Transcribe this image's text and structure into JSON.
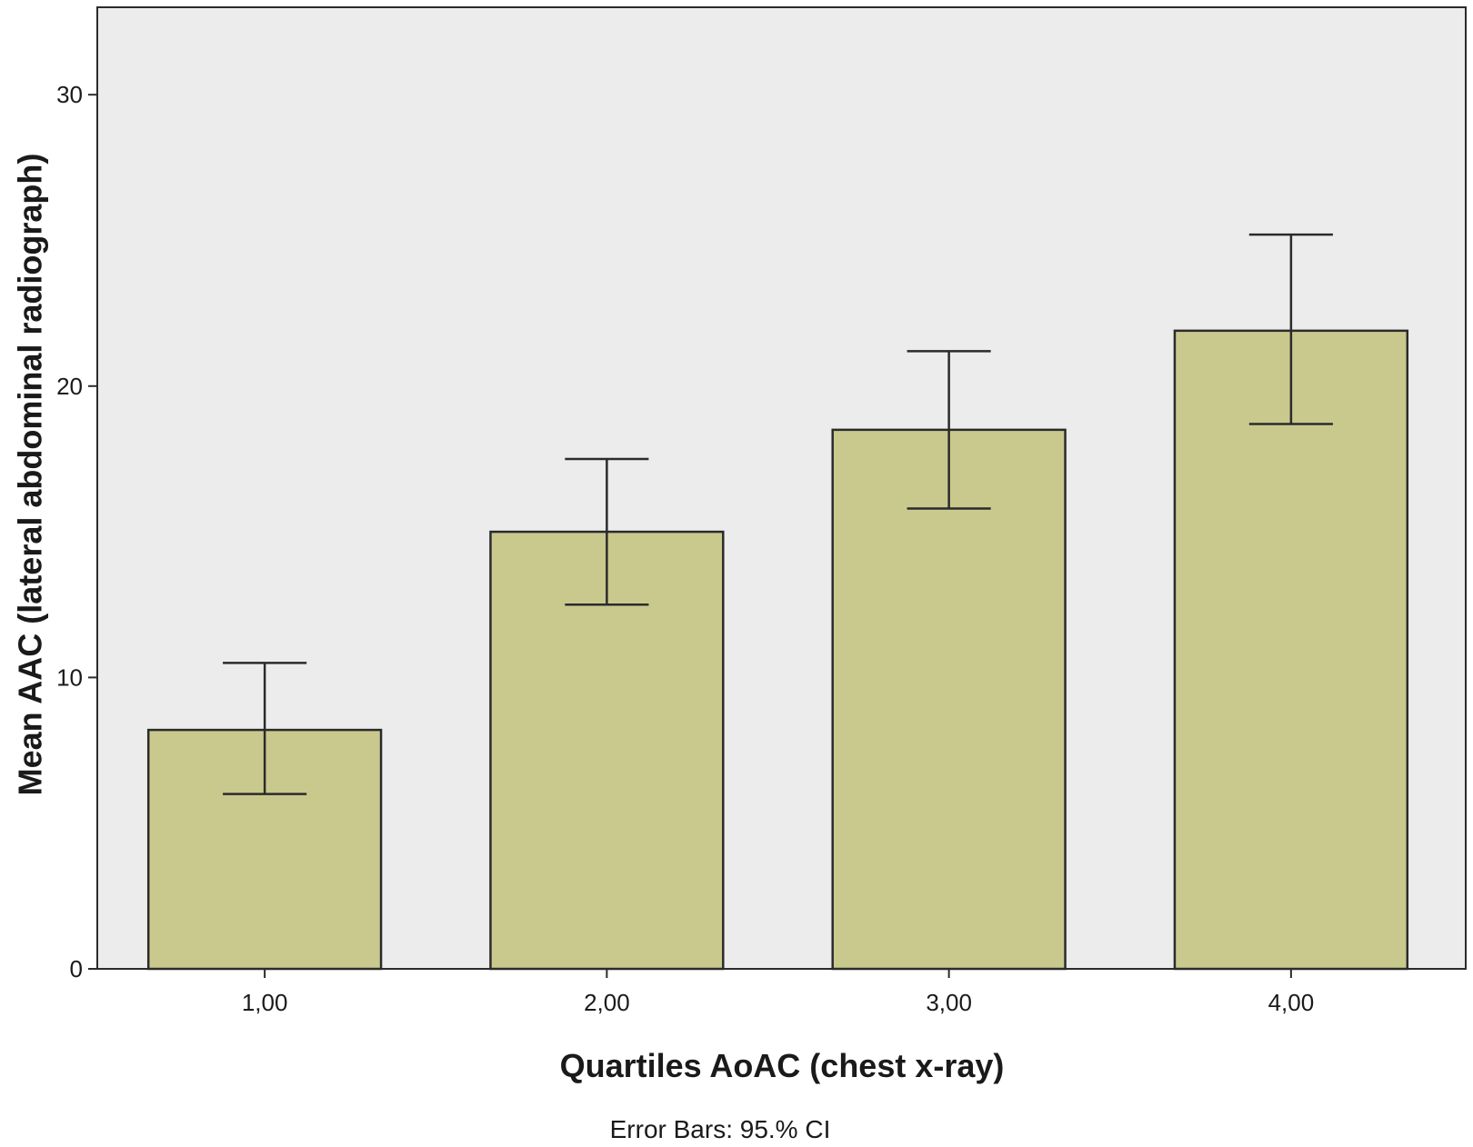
{
  "chart_data": {
    "type": "bar",
    "categories": [
      "1,00",
      "2,00",
      "3,00",
      "4,00"
    ],
    "values": [
      8.2,
      15.0,
      18.5,
      21.9
    ],
    "error_bars": {
      "low": [
        6.0,
        12.5,
        15.8,
        18.7
      ],
      "high": [
        10.5,
        17.5,
        21.2,
        25.2
      ]
    },
    "xlabel": "Quartiles AoAC (chest x-ray)",
    "ylabel": "Mean AAC (lateral abdominal radiograph)",
    "ylim": [
      0,
      33
    ],
    "yticks": [
      0,
      10,
      20,
      30
    ],
    "footnote": "Error Bars: 95.% CI",
    "grid": false,
    "colors": {
      "plot_background": "#ececec",
      "bar_fill": "#c9c98e",
      "bar_stroke": "#2b2b2b",
      "axis": "#2b2b2b"
    }
  }
}
